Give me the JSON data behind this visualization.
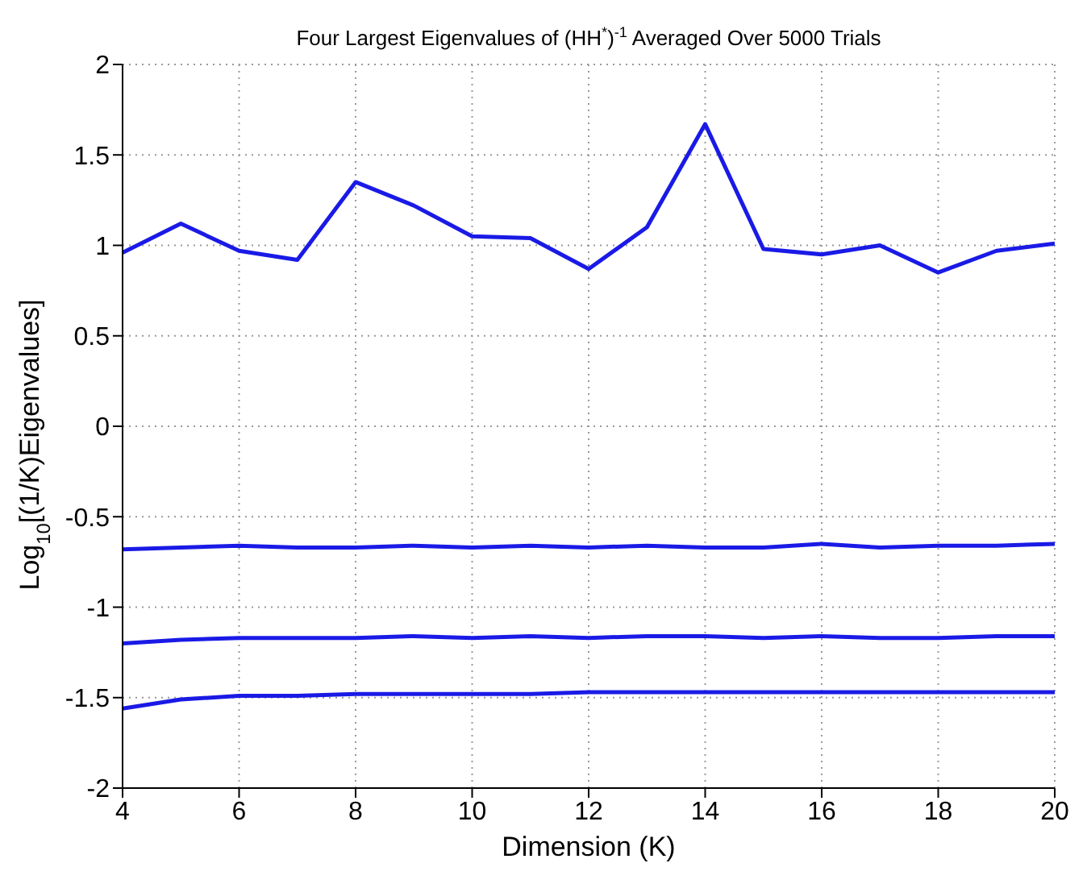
{
  "chart_data": {
    "type": "line",
    "title": "Four Largest Eigenvalues of (HH$^{*}$)$^{-1}$ Averaged Over 5000 Trials",
    "xlabel": "Dimension (K)",
    "ylabel": "Log$_{10}$[(1/K)Eigenvalues]",
    "x": [
      4,
      5,
      6,
      7,
      8,
      9,
      10,
      11,
      12,
      13,
      14,
      15,
      16,
      17,
      18,
      19,
      20
    ],
    "series": [
      {
        "color": "#1a1ae6",
        "values": [
          0.96,
          1.12,
          0.97,
          0.92,
          1.35,
          1.22,
          1.05,
          1.04,
          0.87,
          1.1,
          1.67,
          0.98,
          0.95,
          1.0,
          0.85,
          0.97,
          1.01
        ]
      },
      {
        "color": "#1a1ae6",
        "values": [
          -0.68,
          -0.67,
          -0.66,
          -0.67,
          -0.67,
          -0.66,
          -0.67,
          -0.66,
          -0.67,
          -0.66,
          -0.67,
          -0.67,
          -0.65,
          -0.67,
          -0.66,
          -0.66,
          -0.65
        ]
      },
      {
        "color": "#1a1ae6",
        "values": [
          -1.2,
          -1.18,
          -1.17,
          -1.17,
          -1.17,
          -1.16,
          -1.17,
          -1.16,
          -1.17,
          -1.16,
          -1.16,
          -1.17,
          -1.16,
          -1.17,
          -1.17,
          -1.16,
          -1.16
        ]
      },
      {
        "color": "#1a1ae6",
        "values": [
          -1.56,
          -1.51,
          -1.49,
          -1.49,
          -1.48,
          -1.48,
          -1.48,
          -1.48,
          -1.47,
          -1.47,
          -1.47,
          -1.47,
          -1.47,
          -1.47,
          -1.47,
          -1.47,
          -1.47
        ]
      }
    ],
    "xlim": [
      4,
      20
    ],
    "xticks": [
      4,
      6,
      8,
      10,
      12,
      14,
      16,
      18,
      20
    ],
    "ylim": [
      -2,
      2
    ],
    "yticks": [
      -2,
      -1.5,
      -1,
      -0.5,
      0,
      0.5,
      1,
      1.5,
      2
    ],
    "grid": true,
    "line_style": "solid",
    "marker": "none"
  }
}
